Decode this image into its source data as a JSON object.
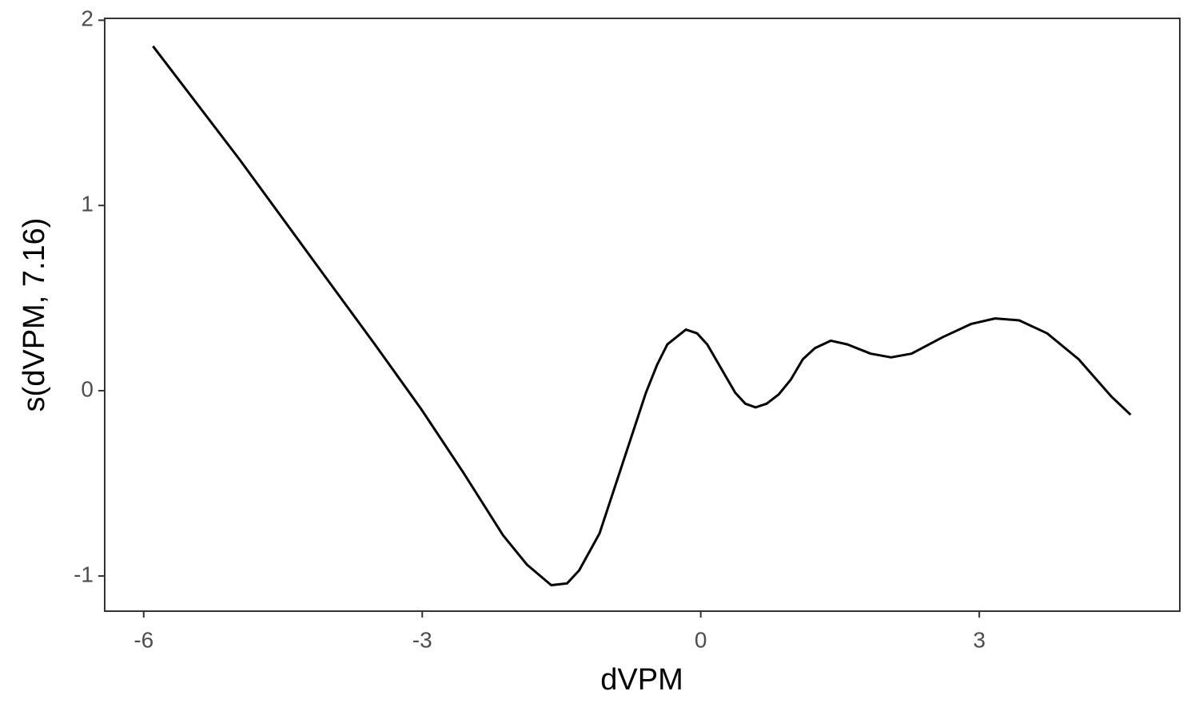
{
  "chart_data": {
    "type": "line",
    "x_label": "dVPM",
    "y_label": "s(dVPM, 7.16)",
    "x": [
      -5.9,
      -4.97,
      -4.11,
      -3.51,
      -3.01,
      -2.56,
      -2.13,
      -1.87,
      -1.61,
      -1.44,
      -1.31,
      -1.09,
      -0.84,
      -0.59,
      -0.47,
      -0.36,
      -0.16,
      -0.04,
      0.07,
      0.22,
      0.37,
      0.48,
      0.59,
      0.71,
      0.84,
      0.97,
      1.1,
      1.23,
      1.4,
      1.58,
      1.83,
      2.05,
      2.27,
      2.61,
      2.91,
      3.17,
      3.43,
      3.73,
      4.07,
      4.42,
      4.63
    ],
    "values": [
      1.86,
      1.25,
      0.66,
      0.25,
      -0.1,
      -0.44,
      -0.78,
      -0.94,
      -1.05,
      -1.04,
      -0.97,
      -0.77,
      -0.39,
      -0.01,
      0.14,
      0.25,
      0.33,
      0.31,
      0.25,
      0.12,
      -0.01,
      -0.07,
      -0.09,
      -0.07,
      -0.02,
      0.06,
      0.17,
      0.23,
      0.27,
      0.25,
      0.2,
      0.18,
      0.2,
      0.29,
      0.36,
      0.39,
      0.38,
      0.31,
      0.17,
      -0.03,
      -0.13
    ],
    "color": "#000000",
    "xlim": [
      -6.42,
      5.16
    ],
    "xticks": [
      -6,
      -3,
      0,
      3
    ],
    "ylim": [
      -1.19,
      2.01
    ],
    "yticks": [
      -1,
      0,
      1,
      2
    ],
    "grid": false
  }
}
